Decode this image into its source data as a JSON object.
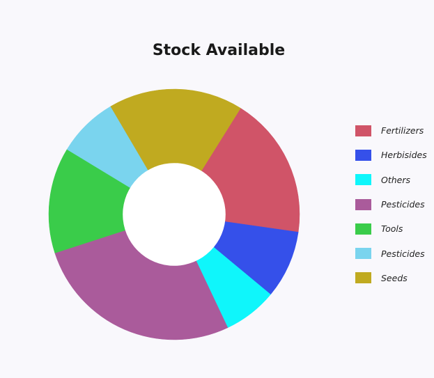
{
  "chart_data": {
    "type": "pie",
    "title": "Stock Available",
    "legend_position": "right",
    "categories": [
      "Fertilizers",
      "Herbisides",
      "Others",
      "Pesticides",
      "Tools",
      "Pesticides",
      "Seeds"
    ],
    "values": [
      18,
      8.6,
      6.8,
      26.5,
      13.4,
      7.7,
      17
    ],
    "colors": [
      "#d05468",
      "#3550ea",
      "#0ff6fb",
      "#aa5b9b",
      "#3acc4a",
      "#7ad4ee",
      "#c0aa20"
    ],
    "inner_radius_ratio": 0.41
  }
}
